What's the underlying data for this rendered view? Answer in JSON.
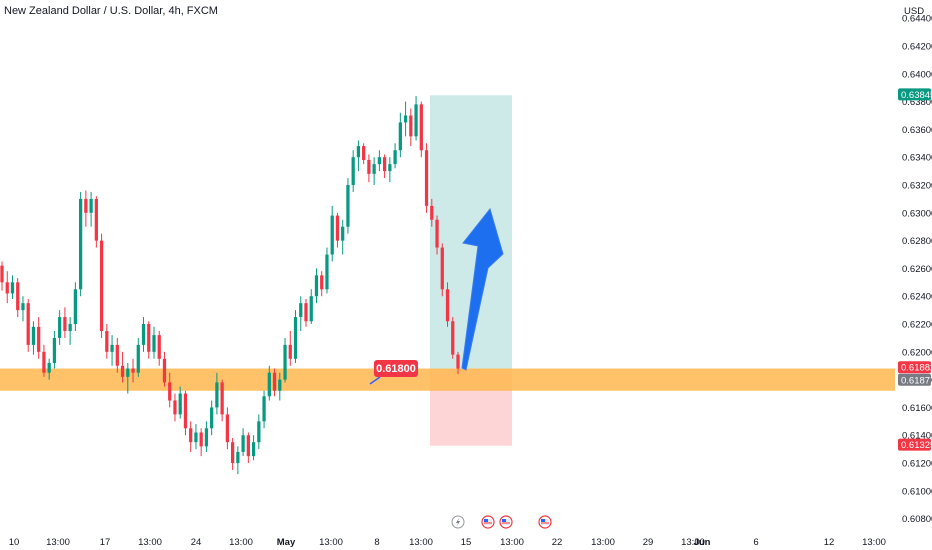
{
  "header": {
    "symbol_title": "New Zealand Dollar / U.S. Dollar, 4h, FXCM",
    "currency": "USD"
  },
  "colors": {
    "up": "#089981",
    "down": "#f23645",
    "support_zone": "#ffb74d",
    "target_zone": "#b2dfdb",
    "stop_zone": "#fccbcd",
    "arrow": "#1e6ff0",
    "callout": "#f23645",
    "current_price_tag": "#f23645",
    "prior_close_tag": "#787b86",
    "target_tag": "#089981",
    "stop_tag": "#f23645"
  },
  "chart_data": {
    "type": "candlestick",
    "title": "New Zealand Dollar / U.S. Dollar, 4h, FXCM",
    "ylabel": "USD",
    "ylim": [
      0.6074,
      0.6443
    ],
    "y_ticks": [
      "0.60800",
      "0.61000",
      "0.61200",
      "0.61400",
      "0.61600",
      "0.61800",
      "0.62000",
      "0.62200",
      "0.62400",
      "0.62600",
      "0.62800",
      "0.63000",
      "0.63200",
      "0.63400",
      "0.63600",
      "0.63800",
      "0.64000",
      "0.64200",
      "0.64400"
    ],
    "x_ticks": [
      "10",
      "13:00",
      "17",
      "13:00",
      "24",
      "13:00",
      "May",
      "13:00",
      "8",
      "13:00",
      "15",
      "13:00",
      "22",
      "13:00",
      "29",
      "13:00",
      "Jun",
      "6",
      "12",
      "13:00"
    ],
    "price_tags": {
      "target": "0.63845",
      "current": "0.61882",
      "prior": "0.61871",
      "stop": "0.61325"
    },
    "callout_label": "0.61800",
    "support_zone": {
      "low": 0.6172,
      "high": 0.6188
    },
    "position": {
      "entry": 0.6188,
      "target": 0.63845,
      "stop": 0.61325
    },
    "event_icons": [
      "lightning",
      "us-flag",
      "us-flag",
      "us-flag"
    ],
    "ohlc": [
      [
        0.6262,
        0.6265,
        0.6244,
        0.625
      ],
      [
        0.625,
        0.6258,
        0.6235,
        0.6242
      ],
      [
        0.6242,
        0.6255,
        0.6238,
        0.625
      ],
      [
        0.625,
        0.6253,
        0.6225,
        0.623
      ],
      [
        0.623,
        0.624,
        0.6222,
        0.6235
      ],
      [
        0.6235,
        0.6238,
        0.62,
        0.6205
      ],
      [
        0.6205,
        0.6222,
        0.6198,
        0.6218
      ],
      [
        0.6218,
        0.6225,
        0.6195,
        0.62
      ],
      [
        0.62,
        0.6205,
        0.6182,
        0.6185
      ],
      [
        0.6185,
        0.6195,
        0.618,
        0.6192
      ],
      [
        0.6192,
        0.6215,
        0.6188,
        0.621
      ],
      [
        0.621,
        0.623,
        0.6205,
        0.6225
      ],
      [
        0.6225,
        0.6232,
        0.621,
        0.6215
      ],
      [
        0.6215,
        0.6225,
        0.6205,
        0.622
      ],
      [
        0.622,
        0.625,
        0.6215,
        0.6245
      ],
      [
        0.6245,
        0.6315,
        0.624,
        0.631
      ],
      [
        0.631,
        0.6316,
        0.629,
        0.63
      ],
      [
        0.63,
        0.6315,
        0.629,
        0.631
      ],
      [
        0.631,
        0.6312,
        0.6275,
        0.628
      ],
      [
        0.628,
        0.6285,
        0.621,
        0.6215
      ],
      [
        0.6215,
        0.622,
        0.6195,
        0.62
      ],
      [
        0.62,
        0.6212,
        0.619,
        0.6205
      ],
      [
        0.6205,
        0.621,
        0.6185,
        0.619
      ],
      [
        0.619,
        0.62,
        0.6178,
        0.6182
      ],
      [
        0.6182,
        0.6192,
        0.617,
        0.6188
      ],
      [
        0.6188,
        0.6195,
        0.6178,
        0.6185
      ],
      [
        0.6185,
        0.621,
        0.6182,
        0.6205
      ],
      [
        0.6205,
        0.6225,
        0.62,
        0.622
      ],
      [
        0.622,
        0.6222,
        0.6195,
        0.62
      ],
      [
        0.62,
        0.6218,
        0.6195,
        0.6212
      ],
      [
        0.6212,
        0.6215,
        0.619,
        0.6195
      ],
      [
        0.6195,
        0.62,
        0.6175,
        0.6178
      ],
      [
        0.6178,
        0.6185,
        0.616,
        0.6165
      ],
      [
        0.6165,
        0.617,
        0.615,
        0.6155
      ],
      [
        0.6155,
        0.6175,
        0.6152,
        0.617
      ],
      [
        0.617,
        0.6172,
        0.614,
        0.6145
      ],
      [
        0.6145,
        0.615,
        0.6128,
        0.6135
      ],
      [
        0.6135,
        0.6148,
        0.613,
        0.6142
      ],
      [
        0.6142,
        0.6145,
        0.6125,
        0.6132
      ],
      [
        0.6132,
        0.615,
        0.6128,
        0.6145
      ],
      [
        0.6145,
        0.6165,
        0.614,
        0.616
      ],
      [
        0.616,
        0.6185,
        0.6155,
        0.6178
      ],
      [
        0.6178,
        0.618,
        0.615,
        0.6155
      ],
      [
        0.6155,
        0.616,
        0.613,
        0.6135
      ],
      [
        0.6135,
        0.6138,
        0.6115,
        0.612
      ],
      [
        0.612,
        0.6132,
        0.6112,
        0.6128
      ],
      [
        0.6128,
        0.6145,
        0.6125,
        0.614
      ],
      [
        0.614,
        0.6142,
        0.612,
        0.6125
      ],
      [
        0.6125,
        0.614,
        0.6122,
        0.6135
      ],
      [
        0.6135,
        0.6155,
        0.613,
        0.615
      ],
      [
        0.615,
        0.6172,
        0.6145,
        0.6168
      ],
      [
        0.6168,
        0.619,
        0.6165,
        0.6185
      ],
      [
        0.6185,
        0.6188,
        0.6168,
        0.6172
      ],
      [
        0.6172,
        0.6185,
        0.6165,
        0.618
      ],
      [
        0.618,
        0.621,
        0.6178,
        0.6205
      ],
      [
        0.6205,
        0.6215,
        0.619,
        0.6195
      ],
      [
        0.6195,
        0.623,
        0.6192,
        0.6225
      ],
      [
        0.6225,
        0.624,
        0.6215,
        0.6235
      ],
      [
        0.6235,
        0.6238,
        0.6218,
        0.6222
      ],
      [
        0.6222,
        0.6245,
        0.622,
        0.624
      ],
      [
        0.624,
        0.626,
        0.6235,
        0.6255
      ],
      [
        0.6255,
        0.6258,
        0.624,
        0.6245
      ],
      [
        0.6245,
        0.6275,
        0.6242,
        0.627
      ],
      [
        0.627,
        0.6305,
        0.6265,
        0.6298
      ],
      [
        0.6298,
        0.63,
        0.6275,
        0.628
      ],
      [
        0.628,
        0.6295,
        0.627,
        0.629
      ],
      [
        0.629,
        0.6325,
        0.6285,
        0.632
      ],
      [
        0.632,
        0.6345,
        0.6315,
        0.634
      ],
      [
        0.634,
        0.6352,
        0.633,
        0.6348
      ],
      [
        0.6348,
        0.635,
        0.6335,
        0.6338
      ],
      [
        0.6338,
        0.6342,
        0.6322,
        0.6328
      ],
      [
        0.6328,
        0.634,
        0.632,
        0.6335
      ],
      [
        0.6335,
        0.6345,
        0.633,
        0.634
      ],
      [
        0.634,
        0.6342,
        0.6325,
        0.633
      ],
      [
        0.633,
        0.634,
        0.6322,
        0.6335
      ],
      [
        0.6335,
        0.635,
        0.6332,
        0.6345
      ],
      [
        0.6345,
        0.6372,
        0.634,
        0.6365
      ],
      [
        0.6365,
        0.638,
        0.6355,
        0.637
      ],
      [
        0.637,
        0.6375,
        0.6348,
        0.6355
      ],
      [
        0.6355,
        0.6384,
        0.6352,
        0.6378
      ],
      [
        0.6378,
        0.638,
        0.634,
        0.6345
      ],
      [
        0.6345,
        0.635,
        0.63,
        0.6305
      ],
      [
        0.6305,
        0.631,
        0.629,
        0.6295
      ],
      [
        0.6295,
        0.6298,
        0.627,
        0.6275
      ],
      [
        0.6275,
        0.6278,
        0.624,
        0.6245
      ],
      [
        0.6245,
        0.625,
        0.6218,
        0.6222
      ],
      [
        0.6222,
        0.6225,
        0.6195,
        0.6198
      ],
      [
        0.6198,
        0.62,
        0.6184,
        0.6188
      ]
    ]
  }
}
